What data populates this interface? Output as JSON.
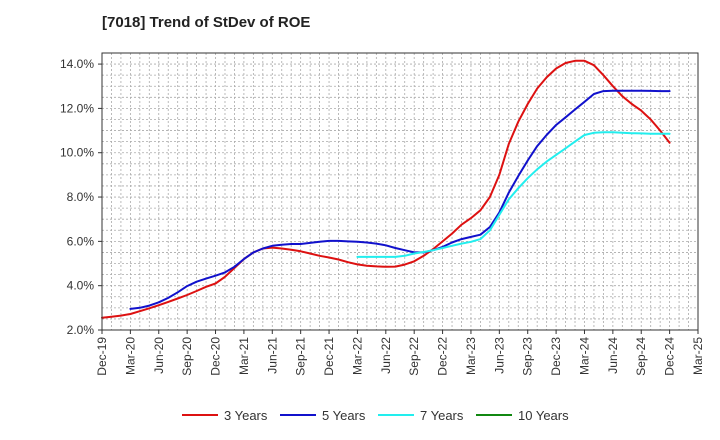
{
  "chart_data": {
    "type": "line",
    "title": "[7018]  Trend of StDev of ROE",
    "x_ticks": [
      "Dec-19",
      "Mar-20",
      "Jun-20",
      "Sep-20",
      "Dec-20",
      "Mar-21",
      "Jun-21",
      "Sep-21",
      "Dec-21",
      "Mar-22",
      "Jun-22",
      "Sep-22",
      "Dec-22",
      "Mar-23",
      "Jun-23",
      "Sep-23",
      "Dec-23",
      "Mar-24",
      "Jun-24",
      "Sep-24",
      "Dec-24",
      "Mar-25"
    ],
    "y_ticks": [
      "2.0%",
      "4.0%",
      "6.0%",
      "8.0%",
      "10.0%",
      "12.0%",
      "14.0%"
    ],
    "ylim": [
      2.0,
      14.5
    ],
    "grid": true,
    "legend_position": "bottom",
    "series": [
      {
        "name": "3 Years",
        "color": "#dd1111",
        "x": [
          "Dec-19",
          "Jan-20",
          "Feb-20",
          "Mar-20",
          "Apr-20",
          "May-20",
          "Jun-20",
          "Jul-20",
          "Aug-20",
          "Sep-20",
          "Oct-20",
          "Nov-20",
          "Dec-20",
          "Jan-21",
          "Feb-21",
          "Mar-21",
          "Apr-21",
          "May-21",
          "Jun-21",
          "Jul-21",
          "Aug-21",
          "Sep-21",
          "Oct-21",
          "Nov-21",
          "Dec-21",
          "Jan-22",
          "Feb-22",
          "Mar-22",
          "Apr-22",
          "May-22",
          "Jun-22",
          "Jul-22",
          "Aug-22",
          "Sep-22",
          "Oct-22",
          "Nov-22",
          "Dec-22",
          "Jan-23",
          "Feb-23",
          "Mar-23",
          "Apr-23",
          "May-23",
          "Jun-23",
          "Jul-23",
          "Aug-23",
          "Sep-23",
          "Oct-23",
          "Nov-23",
          "Dec-23",
          "Jan-24",
          "Feb-24",
          "Mar-24",
          "Apr-24",
          "May-24",
          "Jun-24",
          "Jul-24",
          "Aug-24",
          "Sep-24",
          "Oct-24",
          "Nov-24",
          "Dec-24"
        ],
        "values": [
          2.55,
          2.6,
          2.65,
          2.72,
          2.85,
          2.98,
          3.12,
          3.27,
          3.42,
          3.58,
          3.76,
          3.95,
          4.1,
          4.4,
          4.8,
          5.2,
          5.5,
          5.68,
          5.72,
          5.68,
          5.62,
          5.55,
          5.45,
          5.35,
          5.27,
          5.18,
          5.06,
          4.96,
          4.9,
          4.87,
          4.85,
          4.86,
          4.95,
          5.1,
          5.35,
          5.65,
          6.0,
          6.35,
          6.75,
          7.05,
          7.4,
          8.0,
          9.0,
          10.4,
          11.4,
          12.2,
          12.9,
          13.4,
          13.8,
          14.05,
          14.15,
          14.15,
          13.95,
          13.5,
          13.0,
          12.55,
          12.2,
          11.9,
          11.5,
          11.0,
          10.45
        ]
      },
      {
        "name": "5 Years",
        "color": "#1111cc",
        "x": [
          "Mar-20",
          "Apr-20",
          "May-20",
          "Jun-20",
          "Jul-20",
          "Aug-20",
          "Sep-20",
          "Oct-20",
          "Nov-20",
          "Dec-20",
          "Jan-21",
          "Feb-21",
          "Mar-21",
          "Apr-21",
          "May-21",
          "Jun-21",
          "Jul-21",
          "Aug-21",
          "Sep-21",
          "Oct-21",
          "Nov-21",
          "Dec-21",
          "Jan-22",
          "Feb-22",
          "Mar-22",
          "Apr-22",
          "May-22",
          "Jun-22",
          "Jul-22",
          "Aug-22",
          "Sep-22",
          "Oct-22",
          "Nov-22",
          "Dec-22",
          "Jan-23",
          "Feb-23",
          "Mar-23",
          "Apr-23",
          "May-23",
          "Jun-23",
          "Jul-23",
          "Aug-23",
          "Sep-23",
          "Oct-23",
          "Nov-23",
          "Dec-23",
          "Jan-24",
          "Feb-24",
          "Mar-24",
          "Apr-24",
          "May-24",
          "Jun-24",
          "Jul-24",
          "Aug-24",
          "Sep-24",
          "Oct-24",
          "Nov-24",
          "Dec-24"
        ],
        "values": [
          2.95,
          3.0,
          3.1,
          3.25,
          3.45,
          3.7,
          3.98,
          4.18,
          4.32,
          4.45,
          4.6,
          4.85,
          5.2,
          5.5,
          5.68,
          5.8,
          5.85,
          5.88,
          5.88,
          5.93,
          5.98,
          6.02,
          6.02,
          6.0,
          5.98,
          5.95,
          5.9,
          5.82,
          5.7,
          5.6,
          5.5,
          5.5,
          5.6,
          5.75,
          5.95,
          6.1,
          6.2,
          6.3,
          6.65,
          7.3,
          8.2,
          8.95,
          9.65,
          10.3,
          10.8,
          11.25,
          11.6,
          11.95,
          12.3,
          12.65,
          12.78,
          12.8,
          12.8,
          12.8,
          12.8,
          12.79,
          12.78,
          12.78
        ]
      },
      {
        "name": "7 Years",
        "color": "#22eeee",
        "x": [
          "Mar-22",
          "Apr-22",
          "May-22",
          "Jun-22",
          "Jul-22",
          "Aug-22",
          "Sep-22",
          "Oct-22",
          "Nov-22",
          "Dec-22",
          "Jan-23",
          "Feb-23",
          "Mar-23",
          "Apr-23",
          "May-23",
          "Jun-23",
          "Jul-23",
          "Aug-23",
          "Sep-23",
          "Oct-23",
          "Nov-23",
          "Dec-23",
          "Jan-24",
          "Feb-24",
          "Mar-24",
          "Apr-24",
          "May-24",
          "Jun-24",
          "Jul-24",
          "Aug-24",
          "Sep-24",
          "Oct-24",
          "Nov-24",
          "Dec-24"
        ],
        "values": [
          5.3,
          5.3,
          5.3,
          5.3,
          5.3,
          5.35,
          5.45,
          5.52,
          5.6,
          5.7,
          5.8,
          5.9,
          5.98,
          6.1,
          6.5,
          7.2,
          7.9,
          8.4,
          8.85,
          9.25,
          9.6,
          9.9,
          10.2,
          10.5,
          10.8,
          10.9,
          10.92,
          10.92,
          10.9,
          10.88,
          10.87,
          10.86,
          10.86,
          10.86
        ]
      },
      {
        "name": "10 Years",
        "color": "#118811",
        "x": [],
        "values": []
      }
    ]
  }
}
